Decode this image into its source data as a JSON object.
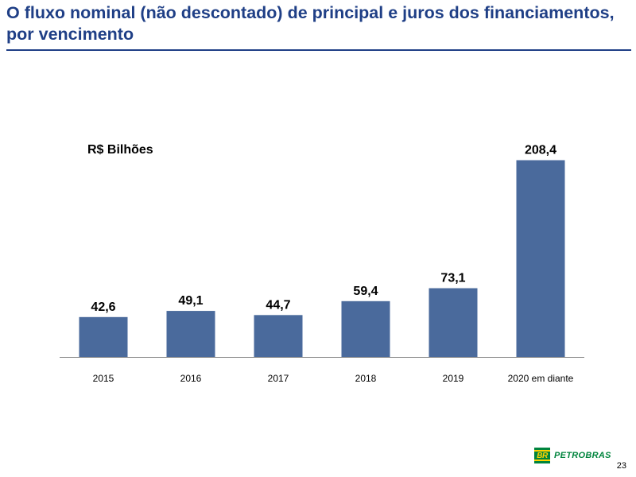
{
  "slide": {
    "title": "O fluxo nominal (não descontado) de principal e juros dos financiamentos, por vencimento",
    "page_number": "23"
  },
  "brand": {
    "logo_mark_text": "BR",
    "name": "PETROBRAS",
    "colors": {
      "green": "#00843D",
      "yellow": "#FFD200"
    }
  },
  "colors": {
    "title": "#1F3F86",
    "bar": "#4A6A9C"
  },
  "chart_data": {
    "type": "bar",
    "unit_label": "R$ Bilhões",
    "categories": [
      "2015",
      "2016",
      "2017",
      "2018",
      "2019",
      "2020 em diante"
    ],
    "values": [
      42.6,
      49.1,
      44.7,
      59.4,
      73.1,
      208.4
    ],
    "value_labels": [
      "42,6",
      "49,1",
      "44,7",
      "59,4",
      "73,1",
      "208,4"
    ],
    "ylim": [
      0,
      250
    ],
    "grid": false,
    "legend": "none"
  }
}
